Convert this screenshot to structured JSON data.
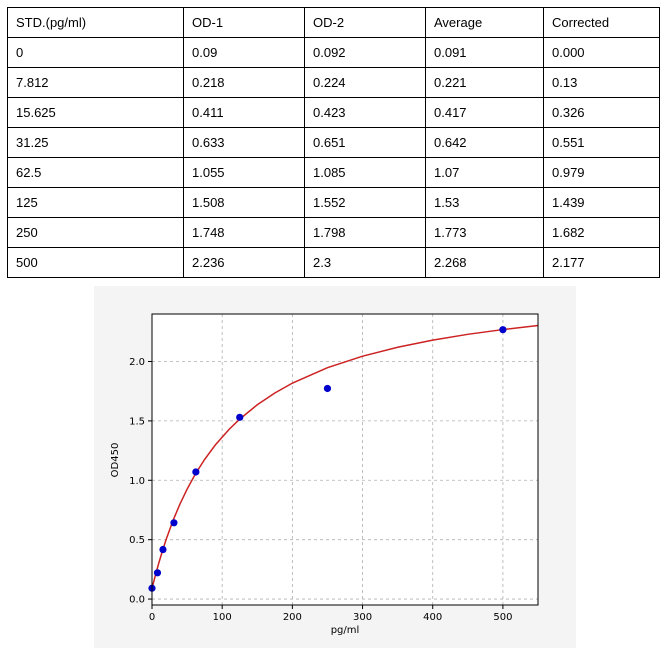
{
  "table": {
    "headers": [
      "STD.(pg/ml)",
      "OD-1",
      "OD-2",
      "Average",
      "Corrected"
    ],
    "rows": [
      [
        "0",
        "0.09",
        "0.092",
        "0.091",
        "0.000"
      ],
      [
        "7.812",
        "0.218",
        "0.224",
        "0.221",
        "0.13"
      ],
      [
        "15.625",
        "0.411",
        "0.423",
        "0.417",
        "0.326"
      ],
      [
        "31.25",
        "0.633",
        "0.651",
        "0.642",
        "0.551"
      ],
      [
        "62.5",
        "1.055",
        "1.085",
        "1.07",
        "0.979"
      ],
      [
        "125",
        "1.508",
        "1.552",
        "1.53",
        "1.439"
      ],
      [
        "250",
        "1.748",
        "1.798",
        "1.773",
        "1.682"
      ],
      [
        "500",
        "2.236",
        "2.3",
        "2.268",
        "2.177"
      ]
    ]
  },
  "chart_data": {
    "type": "scatter",
    "title": "",
    "xlabel": "pg/ml",
    "ylabel": "OD450",
    "xlim": [
      0,
      550
    ],
    "ylim": [
      -0.05,
      2.4
    ],
    "xticks": [
      0,
      100,
      200,
      300,
      400,
      500
    ],
    "yticks": [
      0.0,
      0.5,
      1.0,
      1.5,
      2.0
    ],
    "grid": true,
    "points": {
      "x": [
        0,
        7.812,
        15.625,
        31.25,
        62.5,
        125,
        250,
        500
      ],
      "y": [
        0.091,
        0.221,
        0.417,
        0.642,
        1.07,
        1.53,
        1.773,
        2.268
      ],
      "color": "#0000cc"
    },
    "fit_curve": {
      "color": "#cc2222",
      "x": [
        0,
        5,
        10,
        15,
        20,
        30,
        40,
        50,
        62.5,
        75,
        90,
        110,
        125,
        150,
        175,
        200,
        250,
        300,
        350,
        400,
        450,
        500,
        550
      ],
      "y": [
        0.09,
        0.204,
        0.31,
        0.408,
        0.499,
        0.662,
        0.802,
        0.925,
        1.06,
        1.176,
        1.296,
        1.43,
        1.515,
        1.636,
        1.735,
        1.818,
        1.948,
        2.045,
        2.12,
        2.18,
        2.229,
        2.269,
        2.303
      ]
    }
  }
}
